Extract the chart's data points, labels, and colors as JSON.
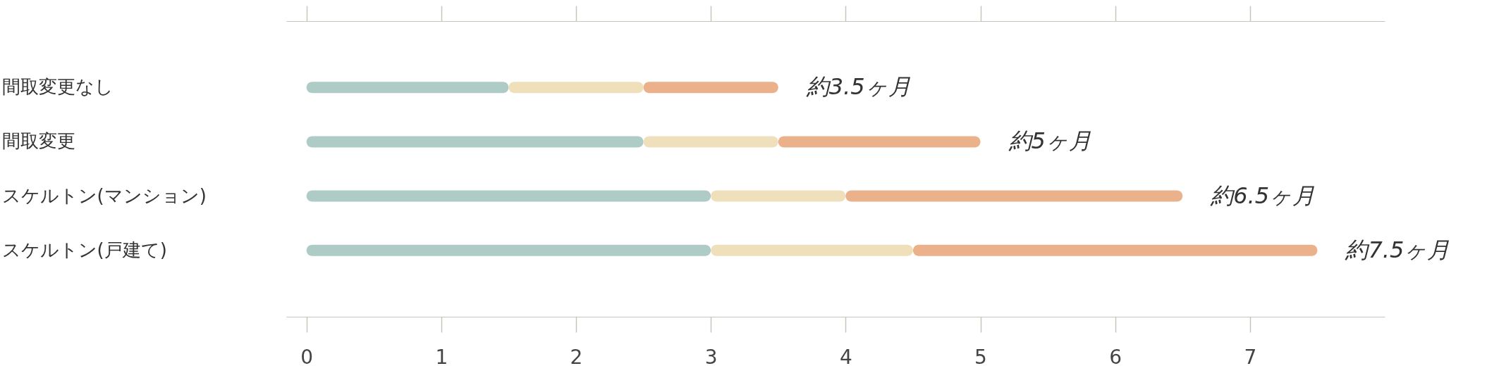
{
  "chart_data": {
    "type": "bar",
    "orientation": "horizontal",
    "stacked": true,
    "categories": [
      "間取変更なし",
      "間取変更",
      "スケルトン(マンション)",
      "スケルトン(戸建て)"
    ],
    "series": [
      {
        "color": "#aecbc5",
        "values": [
          1.5,
          2.5,
          3,
          3
        ]
      },
      {
        "color": "#efe0bb",
        "values": [
          1,
          1,
          1,
          1.5
        ]
      },
      {
        "color": "#eab18b",
        "values": [
          1,
          1.5,
          2.5,
          3
        ]
      }
    ],
    "totals": [
      "約3.5ヶ月",
      "約5ヶ月",
      "約6.5ヶ月",
      "約7.5ヶ月"
    ],
    "xlim": [
      -0.15,
      8
    ],
    "xticks": [
      0,
      1,
      2,
      3,
      4,
      5,
      6,
      7
    ],
    "grid": false
  }
}
